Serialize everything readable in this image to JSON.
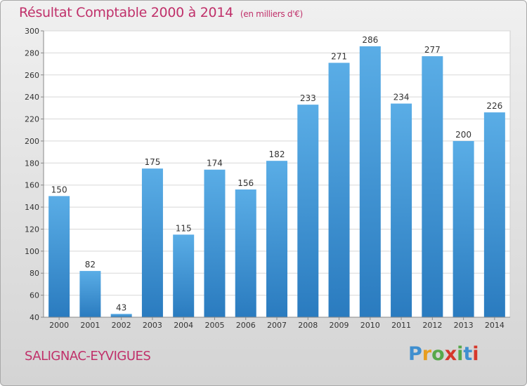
{
  "header": {
    "title": "Résultat Comptable 2000 à 2014",
    "subtitle": "(en milliers d'€)"
  },
  "footer": {
    "commune": "SALIGNAC-EYVIGUES",
    "logo_letters": [
      "P",
      "r",
      "o",
      "x",
      "i",
      "t",
      "i"
    ]
  },
  "colors": {
    "title": "#c0306a",
    "bar_top": "#5aade6",
    "bar_bottom": "#2a7bbf",
    "logo": [
      "#3f8fcf",
      "#e79e20",
      "#57a84a",
      "#d6372b",
      "#57a84a",
      "#3f8fcf",
      "#d6372b"
    ]
  },
  "chart_data": {
    "type": "bar",
    "title": "Résultat Comptable 2000 à 2014",
    "subtitle": "(en milliers d'€)",
    "categories": [
      "2000",
      "2001",
      "2002",
      "2003",
      "2004",
      "2005",
      "2006",
      "2007",
      "2008",
      "2009",
      "2010",
      "2011",
      "2012",
      "2013",
      "2014"
    ],
    "values": [
      150,
      82,
      43,
      175,
      115,
      174,
      156,
      182,
      233,
      271,
      286,
      234,
      277,
      200,
      226
    ],
    "ylim": [
      40,
      300
    ],
    "yticks": [
      "40",
      "60",
      "80",
      "100",
      "120",
      "140",
      "160",
      "180",
      "200",
      "220",
      "240",
      "260",
      "280",
      "300"
    ],
    "grid": true,
    "legend": "none"
  }
}
